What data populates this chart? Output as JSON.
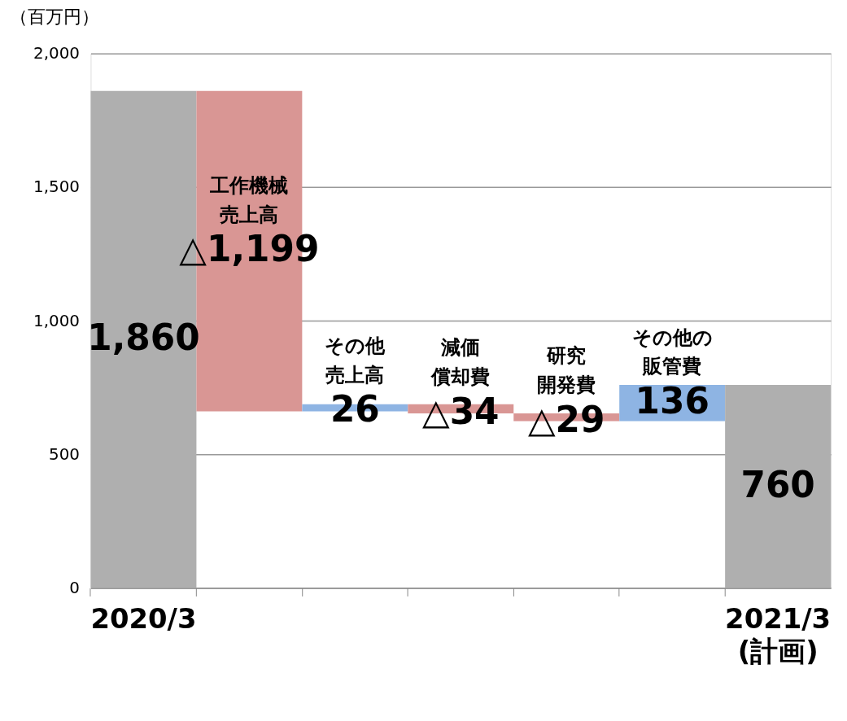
{
  "chart_data": {
    "type": "bar",
    "ylabel": "（百万円）",
    "categories": [
      "2020/3",
      null,
      null,
      null,
      null,
      null,
      "2021/3\n(計画)"
    ],
    "values": [
      1860,
      -1199,
      26,
      -34,
      -29,
      136,
      760
    ],
    "base": [
      0,
      1860,
      661,
      687,
      653,
      624,
      0
    ],
    "colors": [
      "#afafaf",
      "#d99694",
      "#8eb4e3",
      "#d99694",
      "#d99694",
      "#8eb4e3",
      "#afafaf"
    ],
    "value_labels": [
      "1,860",
      "△1,199",
      "26",
      "△34",
      "△29",
      "136",
      "760"
    ],
    "annotations": [
      "工作機械売上高",
      "その他売上高",
      "減価償却費",
      "研究開発費",
      "その他の販管費"
    ],
    "ylim": [
      0,
      2000
    ],
    "yticks": [
      0,
      500,
      {
        "value": 1000,
        "label": "1,000"
      },
      {
        "value": 1500,
        "label": "1,500"
      },
      {
        "value": 2000,
        "label": "2,000"
      }
    ],
    "grid": "y"
  }
}
